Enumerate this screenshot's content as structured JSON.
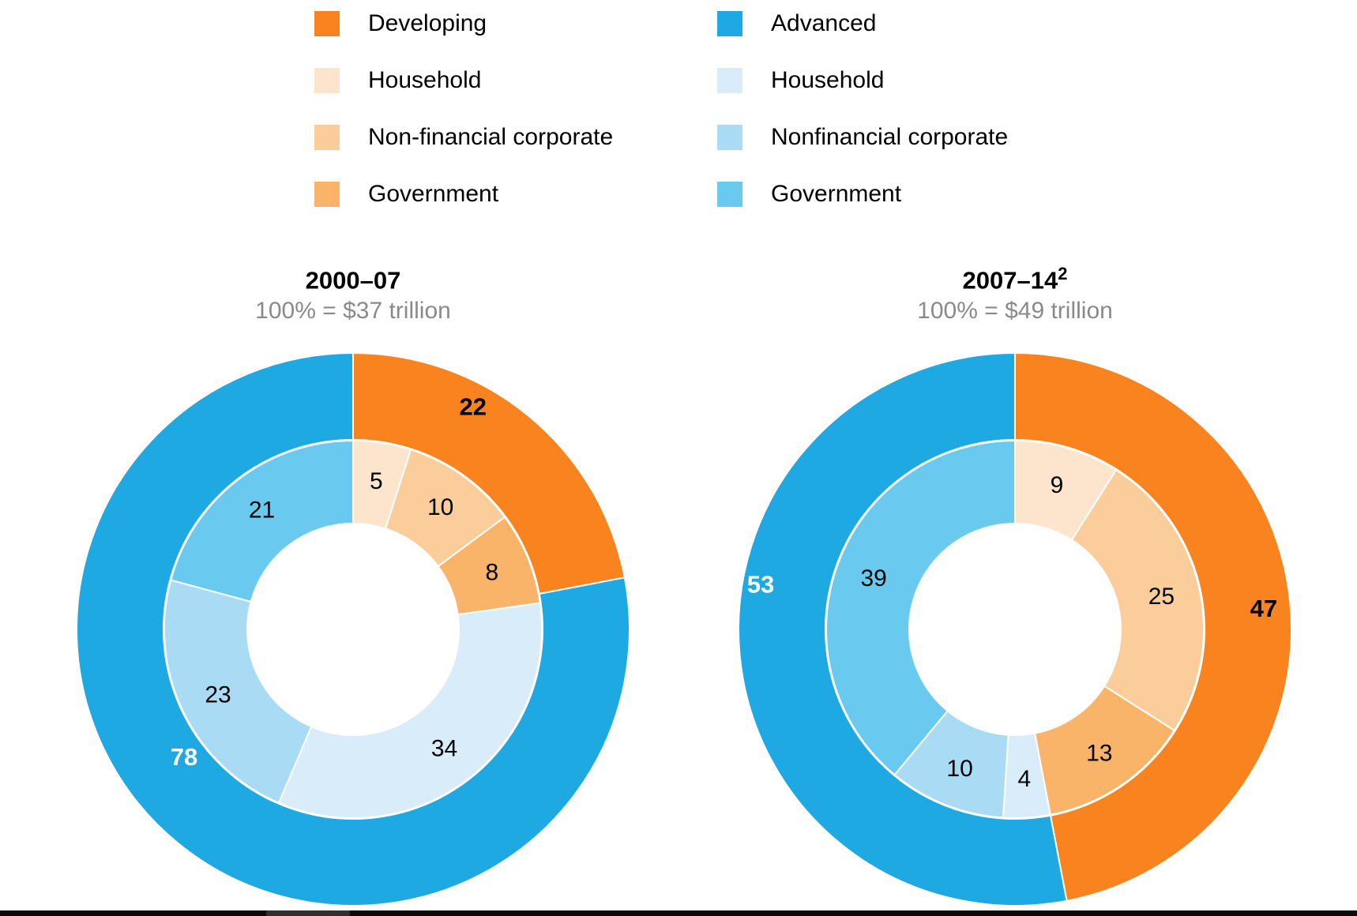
{
  "legend": {
    "columns": [
      {
        "name": "developing",
        "items": [
          {
            "label": "Developing",
            "color": "#F8831F"
          },
          {
            "label": "Household",
            "color": "#FCE5CC"
          },
          {
            "label": "Non-financial corporate",
            "color": "#FACD9B"
          },
          {
            "label": "Government",
            "color": "#FAB46A"
          }
        ]
      },
      {
        "name": "advanced",
        "items": [
          {
            "label": "Advanced",
            "color": "#1FA9E2"
          },
          {
            "label": "Household",
            "color": "#D8ECF9"
          },
          {
            "label": "Nonfinancial corporate",
            "color": "#A9DBF5"
          },
          {
            "label": "Government",
            "color": "#69C9EF"
          }
        ]
      }
    ]
  },
  "chart_data": [
    {
      "type": "donut",
      "title": "2000–07",
      "title_sup": "",
      "subtitle": "100% = $37 trillion",
      "rings": {
        "outer": [
          {
            "label": "Developing",
            "value": 22,
            "color": "#F8831F",
            "label_color": "#000000"
          },
          {
            "label": "Advanced",
            "value": 78,
            "color": "#1FA9E2",
            "label_color": "#ffffff"
          }
        ],
        "inner": [
          {
            "label": "Household (developing)",
            "value": 5,
            "color": "#FCE5CC"
          },
          {
            "label": "Non-financial corporate (developing)",
            "value": 10,
            "color": "#FACD9B"
          },
          {
            "label": "Government (developing)",
            "value": 8,
            "color": "#FAB46A"
          },
          {
            "label": "Household (advanced)",
            "value": 34,
            "color": "#D8ECF9"
          },
          {
            "label": "Nonfinancial corporate (advanced)",
            "value": 23,
            "color": "#A9DBF5"
          },
          {
            "label": "Government (advanced)",
            "value": 21,
            "color": "#69C9EF"
          }
        ]
      }
    },
    {
      "type": "donut",
      "title": "2007–14",
      "title_sup": "2",
      "subtitle": "100% = $49 trillion",
      "rings": {
        "outer": [
          {
            "label": "Developing",
            "value": 47,
            "color": "#F8831F",
            "label_color": "#000000"
          },
          {
            "label": "Advanced",
            "value": 53,
            "color": "#1FA9E2",
            "label_color": "#ffffff"
          }
        ],
        "inner": [
          {
            "label": "Household (developing)",
            "value": 9,
            "color": "#FCE5CC"
          },
          {
            "label": "Non-financial corporate (developing)",
            "value": 25,
            "color": "#FACD9B"
          },
          {
            "label": "Government (developing)",
            "value": 13,
            "color": "#FAB46A"
          },
          {
            "label": "Household (advanced)",
            "value": 4,
            "color": "#D8ECF9"
          },
          {
            "label": "Nonfinancial corporate (advanced)",
            "value": 10,
            "color": "#A9DBF5"
          },
          {
            "label": "Government (advanced)",
            "value": 39,
            "color": "#69C9EF"
          }
        ]
      }
    }
  ],
  "footer": {
    "bar_color": "#0a0a0a",
    "accent_color": "#2f2f2f"
  }
}
